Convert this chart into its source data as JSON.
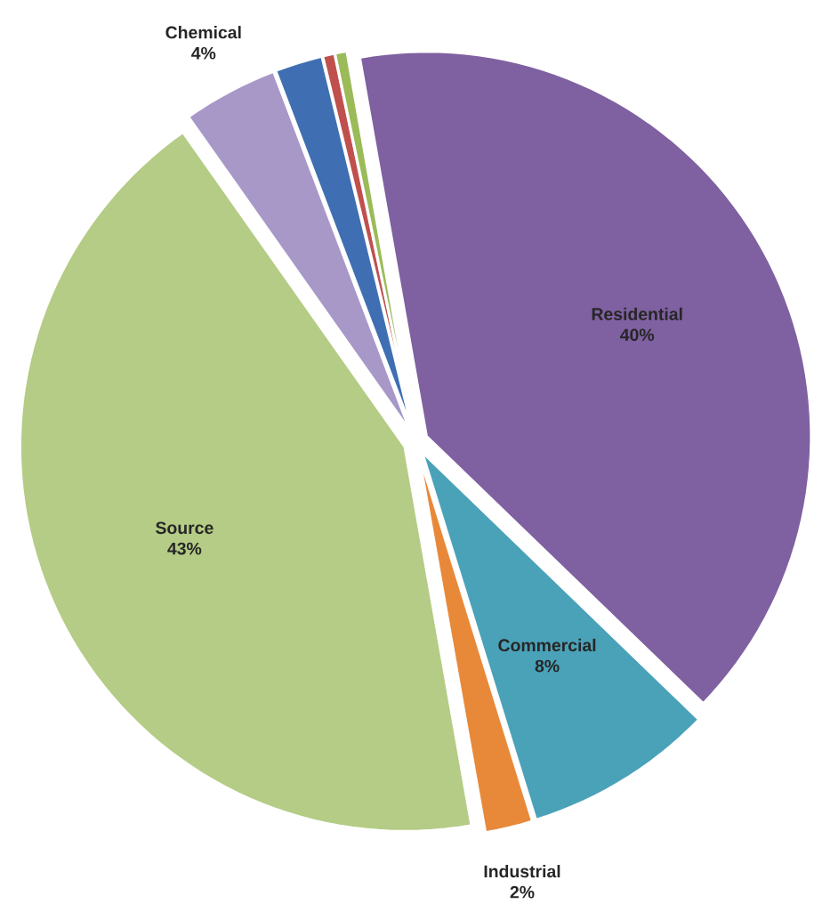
{
  "chart_data": {
    "type": "pie",
    "categories": [
      "Residential",
      "Commercial",
      "Industrial",
      "Source",
      "Chemical",
      null,
      null,
      null
    ],
    "values": [
      40,
      8,
      2,
      43,
      4,
      2,
      0.5,
      0.5
    ],
    "colors": [
      "#7f60a1",
      "#4aa2b9",
      "#e8893a",
      "#b4cc85",
      "#a898c8",
      "#3f6fb2",
      "#c0504d",
      "#9bbb59"
    ],
    "value_labels": [
      "40%",
      "8%",
      "2%",
      "43%",
      "4%",
      null,
      null,
      null
    ]
  }
}
